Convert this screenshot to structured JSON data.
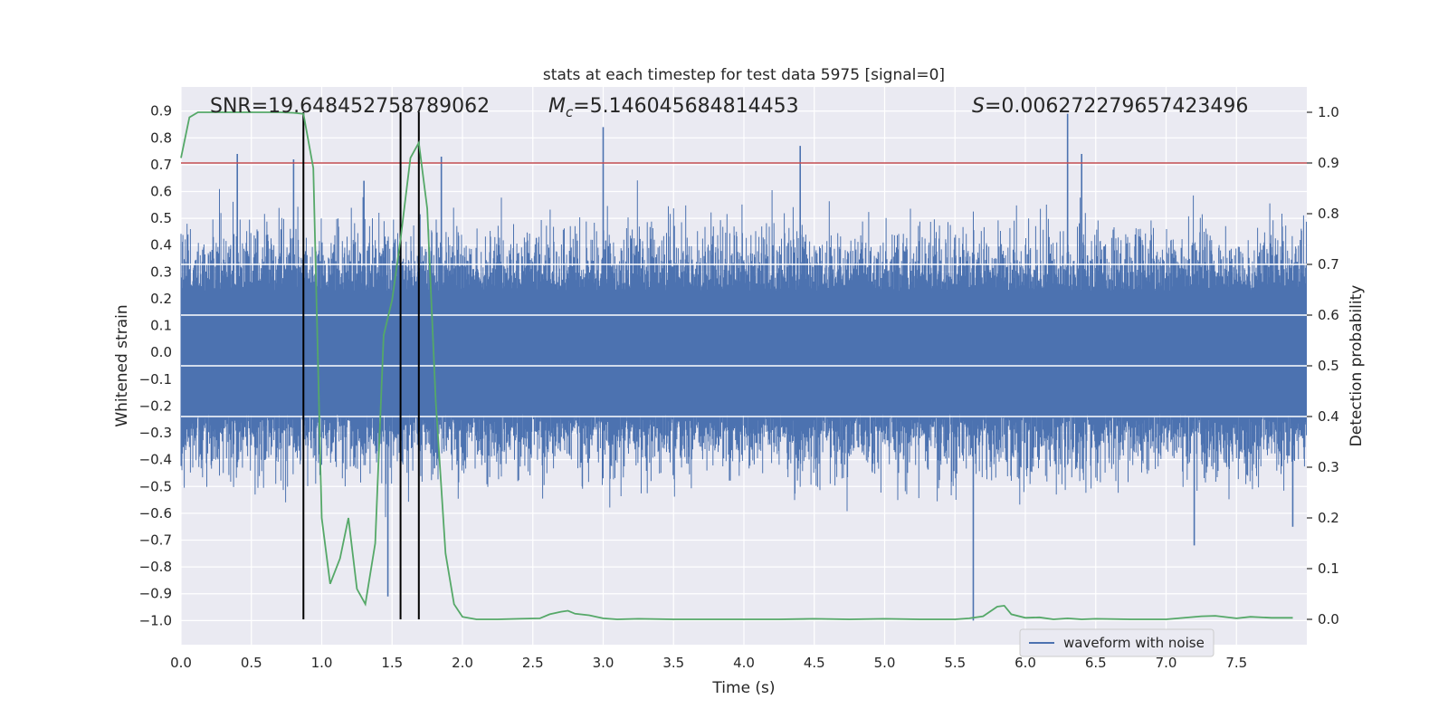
{
  "chart_data": {
    "type": "line",
    "title": "stats at each timestep for test data 5975 [signal=0]",
    "xlabel": "Time (s)",
    "ylabel": "Whitened strain",
    "ylabel_right": "Detection probability",
    "xlim": [
      0.0,
      8.0
    ],
    "ylim": [
      -1.09,
      0.99
    ],
    "ylim_right": [
      -0.05,
      1.05
    ],
    "xticks": [
      "0.0",
      "0.5",
      "1.0",
      "1.5",
      "2.0",
      "2.5",
      "3.0",
      "3.5",
      "4.0",
      "4.5",
      "5.0",
      "5.5",
      "6.0",
      "6.5",
      "7.0",
      "7.5"
    ],
    "yticks": [
      "0.9",
      "0.8",
      "0.7",
      "0.6",
      "0.5",
      "0.4",
      "0.3",
      "0.2",
      "0.1",
      "0.0",
      "−0.1",
      "−0.2",
      "−0.3",
      "−0.4",
      "−0.5",
      "−0.6",
      "−0.7",
      "−0.8",
      "−0.9",
      "−1.0"
    ],
    "yticks_right": [
      "1.0",
      "0.9",
      "0.8",
      "0.7",
      "0.6",
      "0.5",
      "0.4",
      "0.3",
      "0.2",
      "0.1",
      "0.0"
    ],
    "annotations": {
      "snr": "SNR=19.648452758789062",
      "mc_symbol": "M",
      "mc_subscript": "c",
      "mc_value": "=5.146045684814453",
      "s_symbol": "S",
      "s_value": "=0.006272279657423496"
    },
    "threshold": {
      "value": 0.9,
      "color": "#c44e52"
    },
    "vertical_lines": [
      0.87,
      1.56,
      1.69
    ],
    "series": [
      {
        "name": "waveform with noise",
        "color": "#4c72b0",
        "style": "dense-noise",
        "envelope_typical": [
          -0.35,
          0.35
        ],
        "spikes": [
          {
            "x": 0.4,
            "y": 0.74
          },
          {
            "x": 0.8,
            "y": 0.72
          },
          {
            "x": 1.3,
            "y": 0.64
          },
          {
            "x": 1.47,
            "y": -0.91
          },
          {
            "x": 1.85,
            "y": 0.73
          },
          {
            "x": 3.0,
            "y": 0.84
          },
          {
            "x": 4.4,
            "y": 0.77
          },
          {
            "x": 5.63,
            "y": -1.0
          },
          {
            "x": 6.3,
            "y": 0.89
          },
          {
            "x": 6.4,
            "y": 0.74
          },
          {
            "x": 7.2,
            "y": -0.72
          },
          {
            "x": 7.9,
            "y": -0.65
          }
        ]
      },
      {
        "name": "detection probability",
        "color": "#55a868",
        "axis": "right",
        "x": [
          0.0,
          0.06,
          0.12,
          0.2,
          0.3,
          0.4,
          0.5,
          0.6,
          0.7,
          0.8,
          0.87,
          0.94,
          1.0,
          1.06,
          1.13,
          1.19,
          1.25,
          1.31,
          1.38,
          1.44,
          1.5,
          1.56,
          1.63,
          1.69,
          1.75,
          1.81,
          1.88,
          1.94,
          2.0,
          2.1,
          2.25,
          2.4,
          2.55,
          2.62,
          2.7,
          2.75,
          2.8,
          2.9,
          3.0,
          3.1,
          3.25,
          3.5,
          3.75,
          4.0,
          4.25,
          4.5,
          4.75,
          5.0,
          5.25,
          5.5,
          5.6,
          5.7,
          5.8,
          5.85,
          5.9,
          6.0,
          6.1,
          6.2,
          6.3,
          6.4,
          6.5,
          6.75,
          7.0,
          7.25,
          7.35,
          7.5,
          7.6,
          7.75,
          7.9
        ],
        "y": [
          0.91,
          0.99,
          1.0,
          1.0,
          1.0,
          1.0,
          1.0,
          1.0,
          1.0,
          0.999,
          0.997,
          0.89,
          0.2,
          0.07,
          0.12,
          0.2,
          0.06,
          0.03,
          0.15,
          0.56,
          0.63,
          0.75,
          0.91,
          0.94,
          0.81,
          0.43,
          0.13,
          0.03,
          0.005,
          0.0,
          0.0,
          0.001,
          0.002,
          0.01,
          0.015,
          0.017,
          0.011,
          0.008,
          0.002,
          0.0,
          0.001,
          0.0,
          0.0,
          0.0,
          0.0,
          0.001,
          0.0,
          0.001,
          0.0,
          0.0,
          0.002,
          0.006,
          0.025,
          0.027,
          0.01,
          0.003,
          0.004,
          0.0,
          0.002,
          0.0,
          0.001,
          0.0,
          0.0,
          0.006,
          0.007,
          0.002,
          0.005,
          0.003,
          0.003
        ]
      }
    ],
    "legend": {
      "position": "bottom-right",
      "entries": [
        "waveform with noise"
      ]
    }
  }
}
